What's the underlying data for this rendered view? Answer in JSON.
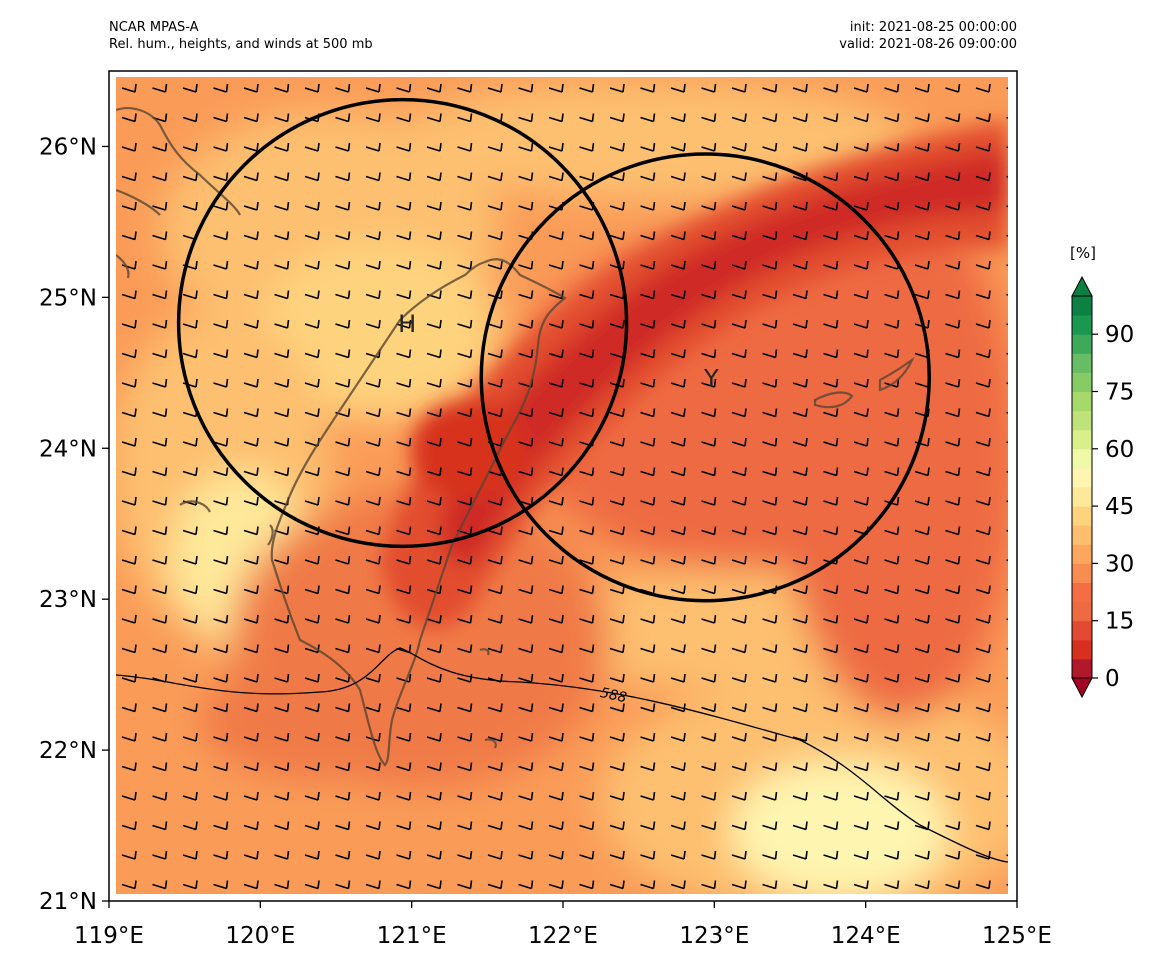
{
  "header": {
    "model": "NCAR MPAS-A",
    "description": "Rel. hum., heights, and winds at 500 mb",
    "init": "init: 2021-08-25 00:00:00",
    "valid": "valid: 2021-08-26 09:00:00"
  },
  "map": {
    "lon_range": [
      119,
      125
    ],
    "lat_range": [
      21,
      26.5
    ],
    "x_ticks": [
      "119°E",
      "120°E",
      "121°E",
      "122°E",
      "123°E",
      "124°E",
      "125°E"
    ],
    "y_ticks": [
      "21°N",
      "22°N",
      "23°N",
      "24°N",
      "25°N",
      "26°N"
    ],
    "markers": [
      {
        "label": "H",
        "lon": 120.97,
        "lat": 24.83
      },
      {
        "label": "Y",
        "lon": 122.98,
        "lat": 24.47
      }
    ],
    "circles": [
      {
        "center_lon": 120.94,
        "center_lat": 24.83,
        "radius_deg": 1.48
      },
      {
        "center_lon": 122.94,
        "center_lat": 24.47,
        "radius_deg": 1.48
      }
    ],
    "height_contour": {
      "label": "588"
    },
    "colors": {
      "dry": "#a50026",
      "moist": "#006837",
      "coast": "#4a3a2a"
    }
  },
  "colorbar": {
    "unit": "[%]",
    "ticks": [
      "0",
      "15",
      "30",
      "45",
      "60",
      "75",
      "90"
    ],
    "levels": [
      0,
      5,
      10,
      15,
      20,
      25,
      30,
      35,
      40,
      45,
      50,
      55,
      60,
      65,
      70,
      75,
      80,
      85,
      90,
      95,
      100
    ],
    "colors": [
      "#b2182b",
      "#d7301f",
      "#e34a33",
      "#ee6a43",
      "#f46d43",
      "#f88d52",
      "#fca65e",
      "#fdbf6f",
      "#fed37e",
      "#fee89a",
      "#fef5b0",
      "#f0f9a8",
      "#d9ef8b",
      "#bfe37a",
      "#a6d96a",
      "#86cb66",
      "#66bd63",
      "#3fa95a",
      "#1a9850",
      "#0d8044"
    ]
  }
}
